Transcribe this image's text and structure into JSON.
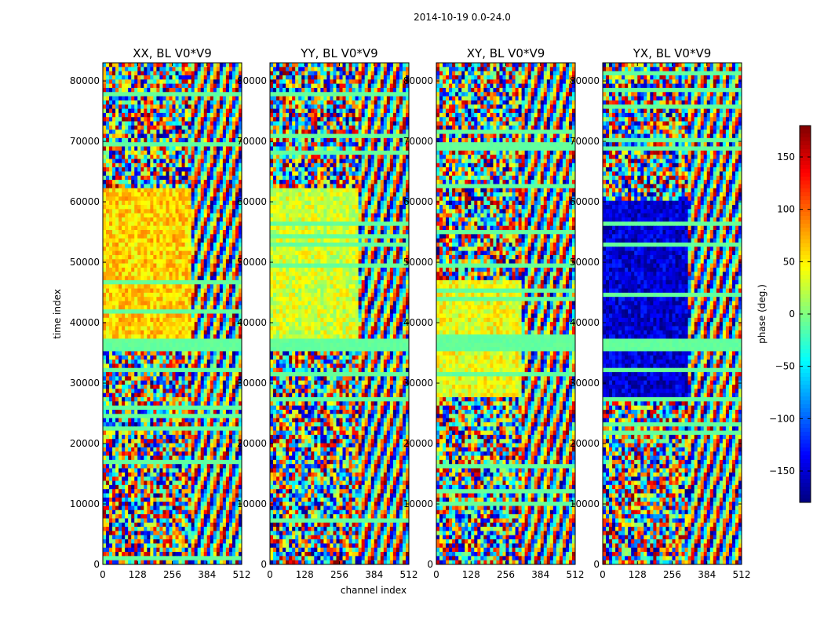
{
  "chart_data": {
    "type": "heatmap",
    "suptitle": "2014-10-19 0.0-24.0",
    "xlabel": "channel index",
    "ylabel": "time index",
    "xlim": [
      0,
      512
    ],
    "ylim": [
      0,
      83000
    ],
    "x_ticks": [
      0,
      128,
      256,
      384,
      512
    ],
    "x_tick_labels": [
      "0",
      "128",
      "256",
      "384",
      "512"
    ],
    "y_ticks": [
      0,
      10000,
      20000,
      30000,
      40000,
      50000,
      60000,
      70000,
      80000
    ],
    "y_tick_labels": [
      "0",
      "10000",
      "20000",
      "30000",
      "40000",
      "50000",
      "60000",
      "70000",
      "80000"
    ],
    "colorbar": {
      "label": "phase (deg.)",
      "range": [
        -180,
        180
      ],
      "colormap": "jet",
      "ticks": [
        150,
        100,
        50,
        0,
        -50,
        -100,
        -150
      ],
      "tick_labels": [
        "150",
        "100",
        "50",
        "0",
        "−50",
        "−100",
        "−150"
      ]
    },
    "panels": [
      {
        "title": "XX, BL V0*V9",
        "pol": "XX",
        "baseline": "V0*V9",
        "mean_phase_deg": 60,
        "coherent_start": 37000,
        "coherent_end": 62000,
        "flagged_band": [
          35500,
          37500
        ],
        "edge_channel": 325
      },
      {
        "title": "YY, BL V0*V9",
        "pol": "YY",
        "baseline": "V0*V9",
        "mean_phase_deg": 30,
        "coherent_start": 37000,
        "coherent_end": 62000,
        "flagged_band": [
          35500,
          37500
        ],
        "edge_channel": 325
      },
      {
        "title": "XY, BL V0*V9",
        "pol": "XY",
        "baseline": "V0*V9",
        "mean_phase_deg": 40,
        "coherent_start": 28000,
        "coherent_end": 47000,
        "flagged_band": [
          35500,
          37500
        ],
        "edge_channel": 320
      },
      {
        "title": "YX, BL V0*V9",
        "pol": "YX",
        "baseline": "V0*V9",
        "mean_phase_deg": -150,
        "coherent_start": 28000,
        "coherent_end": 60000,
        "flagged_band": [
          35500,
          37500
        ],
        "edge_channel": 320
      }
    ]
  }
}
